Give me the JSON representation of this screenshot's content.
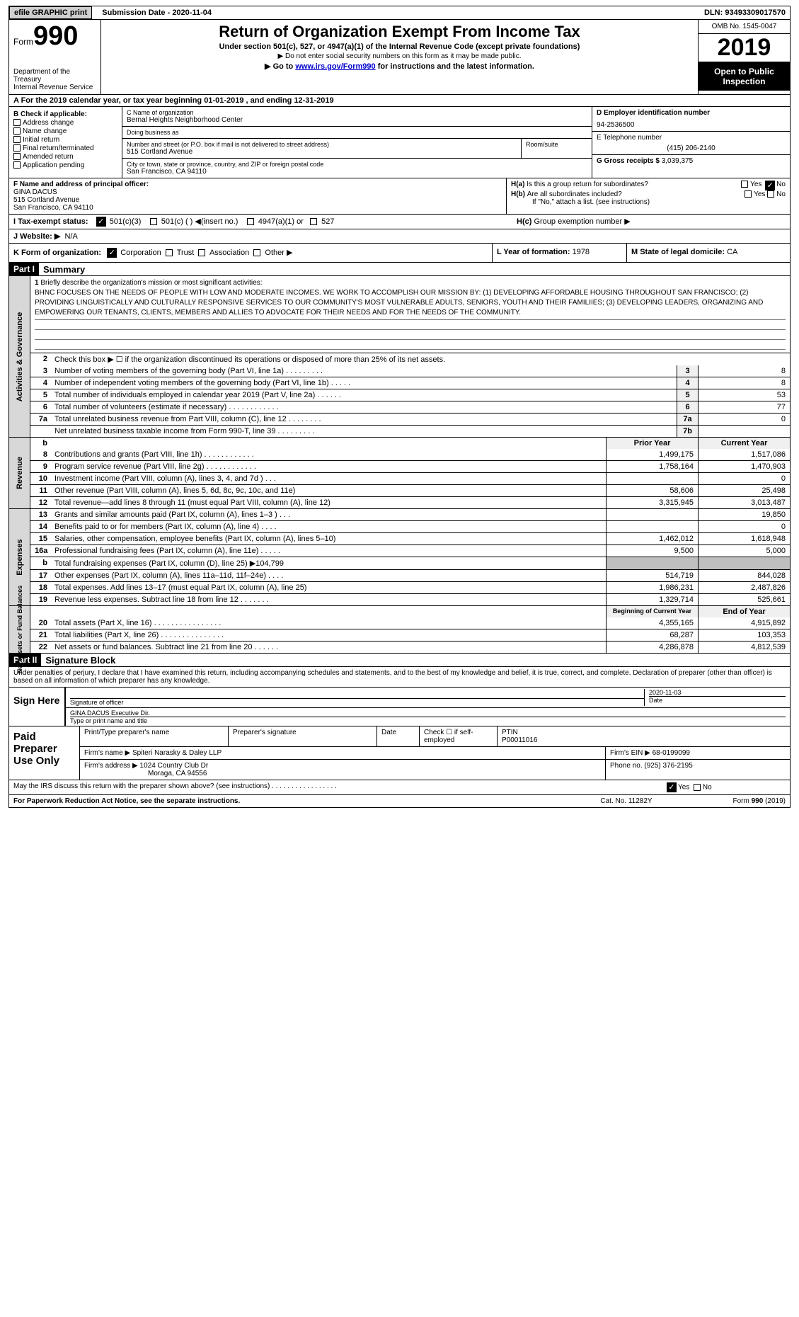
{
  "topbar": {
    "efile": "efile GRAPHIC print",
    "submission": "Submission Date - 2020-11-04",
    "dln": "DLN: 93493309017570"
  },
  "header": {
    "form_label": "Form",
    "form_num": "990",
    "dept": "Department of the Treasury\nInternal Revenue Service",
    "title": "Return of Organization Exempt From Income Tax",
    "sub1": "Under section 501(c), 527, or 4947(a)(1) of the Internal Revenue Code (except private foundations)",
    "sub2": "▶ Do not enter social security numbers on this form as it may be made public.",
    "sub3_pre": "▶ Go to ",
    "sub3_link": "www.irs.gov/Form990",
    "sub3_post": " for instructions and the latest information.",
    "omb": "OMB No. 1545-0047",
    "year": "2019",
    "open": "Open to Public Inspection"
  },
  "rowA": "A  For the 2019 calendar year, or tax year beginning 01-01-2019   , and ending 12-31-2019",
  "B": {
    "title": "B Check if applicable:",
    "items": [
      "Address change",
      "Name change",
      "Initial return",
      "Final return/terminated",
      "Amended return",
      "Application pending"
    ]
  },
  "C": {
    "name_lab": "C Name of organization",
    "name": "Bernal Heights Neighborhood Center",
    "dba_lab": "Doing business as",
    "dba": "",
    "addr_lab": "Number and street (or P.O. box if mail is not delivered to street address)",
    "addr": "515 Cortland Avenue",
    "room_lab": "Room/suite",
    "city_lab": "City or town, state or province, country, and ZIP or foreign postal code",
    "city": "San Francisco, CA  94110"
  },
  "D": {
    "lab": "D Employer identification number",
    "val": "94-2536500"
  },
  "E": {
    "lab": "E Telephone number",
    "val": "(415) 206-2140"
  },
  "G": {
    "lab": "G Gross receipts $",
    "val": "3,039,375"
  },
  "F": {
    "lab": "F Name and address of principal officer:",
    "name": "GINA DACUS",
    "addr1": "515 Cortland Avenue",
    "addr2": "San Francisco, CA  94110"
  },
  "H": {
    "a": "Is this a group return for subordinates?",
    "b": "Are all subordinates included?",
    "bnote": "If \"No,\" attach a list. (see instructions)",
    "c": "Group exemption number ▶",
    "yes": "Yes",
    "no": "No"
  },
  "I": {
    "lab": "I    Tax-exempt status:",
    "c3": "501(c)(3)",
    "c": "501(c) (  ) ◀(insert no.)",
    "a1": "4947(a)(1) or",
    "s527": "527"
  },
  "J": {
    "lab": "J   Website: ▶",
    "val": "N/A"
  },
  "K": {
    "lab": "K Form of organization:",
    "corp": "Corporation",
    "trust": "Trust",
    "assoc": "Association",
    "other": "Other ▶"
  },
  "L": {
    "lab": "L Year of formation:",
    "val": "1978"
  },
  "M": {
    "lab": "M State of legal domicile:",
    "val": "CA"
  },
  "partI": {
    "label": "Part I",
    "title": "Summary"
  },
  "mission": {
    "num": "1",
    "lab": "Briefly describe the organization's mission or most significant activities:",
    "text": "BHNC FOCUSES ON THE NEEDS OF PEOPLE WITH LOW AND MODERATE INCOMES. WE WORK TO ACCOMPLISH OUR MISSION BY: (1) DEVELOPING AFFORDABLE HOUSING THROUGHOUT SAN FRANCISCO; (2) PROVIDING LINGUISTICALLY AND CULTURALLY RESPONSIVE SERVICES TO OUR COMMUNITY'S MOST VULNERABLE ADULTS, SENIORS, YOUTH AND THEIR FAMILIIES; (3) DEVELOPING LEADERS, ORGANIZING AND EMPOWERING OUR TENANTS, CLIENTS, MEMBERS AND ALLIES TO ADVOCATE FOR THEIR NEEDS AND FOR THE NEEDS OF THE COMMUNITY."
  },
  "ag": {
    "label": "Activities & Governance",
    "l2": "Check this box ▶ ☐ if the organization discontinued its operations or disposed of more than 25% of its net assets.",
    "rows": [
      {
        "n": "3",
        "d": "Number of voting members of the governing body (Part VI, line 1a)   .    .    .    .    .    .    .    .    .",
        "b": "3",
        "v": "8"
      },
      {
        "n": "4",
        "d": "Number of independent voting members of the governing body (Part VI, line 1b)   .    .    .    .    .",
        "b": "4",
        "v": "8"
      },
      {
        "n": "5",
        "d": "Total number of individuals employed in calendar year 2019 (Part V, line 2a)   .    .    .    .    .    .",
        "b": "5",
        "v": "53"
      },
      {
        "n": "6",
        "d": "Total number of volunteers (estimate if necessary)   .    .    .    .    .    .    .    .    .    .    .    .",
        "b": "6",
        "v": "77"
      },
      {
        "n": "7a",
        "d": "Total unrelated business revenue from Part VIII, column (C), line 12   .    .    .    .    .    .    .    .",
        "b": "7a",
        "v": "0"
      },
      {
        "n": "",
        "d": "Net unrelated business taxable income from Form 990-T, line 39   .    .    .    .    .    .    .    .    .",
        "b": "7b",
        "v": ""
      }
    ]
  },
  "rev": {
    "label": "Revenue",
    "hdr": {
      "b": "b",
      "py": "Prior Year",
      "cy": "Current Year"
    },
    "rows": [
      {
        "n": "8",
        "d": "Contributions and grants (Part VIII, line 1h)   .    .    .    .    .    .    .    .    .    .    .    .",
        "py": "1,499,175",
        "cy": "1,517,086"
      },
      {
        "n": "9",
        "d": "Program service revenue (Part VIII, line 2g)   .    .    .    .    .    .    .    .    .    .    .    .",
        "py": "1,758,164",
        "cy": "1,470,903"
      },
      {
        "n": "10",
        "d": "Investment income (Part VIII, column (A), lines 3, 4, and 7d )   .    .    .",
        "py": "",
        "cy": "0"
      },
      {
        "n": "11",
        "d": "Other revenue (Part VIII, column (A), lines 5, 6d, 8c, 9c, 10c, and 11e)",
        "py": "58,606",
        "cy": "25,498"
      },
      {
        "n": "12",
        "d": "Total revenue—add lines 8 through 11 (must equal Part VIII, column (A), line 12)",
        "py": "3,315,945",
        "cy": "3,013,487"
      }
    ]
  },
  "exp": {
    "label": "Expenses",
    "rows": [
      {
        "n": "13",
        "d": "Grants and similar amounts paid (Part IX, column (A), lines 1–3 )   .    .    .",
        "py": "",
        "cy": "19,850"
      },
      {
        "n": "14",
        "d": "Benefits paid to or for members (Part IX, column (A), line 4)   .    .    .    .",
        "py": "",
        "cy": "0"
      },
      {
        "n": "15",
        "d": "Salaries, other compensation, employee benefits (Part IX, column (A), lines 5–10)",
        "py": "1,462,012",
        "cy": "1,618,948"
      },
      {
        "n": "16a",
        "d": "Professional fundraising fees (Part IX, column (A), line 11e)   .    .    .    .    .",
        "py": "9,500",
        "cy": "5,000"
      },
      {
        "n": "b",
        "d": "Total fundraising expenses (Part IX, column (D), line 25) ▶104,799",
        "py": "gray",
        "cy": "gray"
      },
      {
        "n": "17",
        "d": "Other expenses (Part IX, column (A), lines 11a–11d, 11f–24e)   .    .    .    .",
        "py": "514,719",
        "cy": "844,028"
      },
      {
        "n": "18",
        "d": "Total expenses. Add lines 13–17 (must equal Part IX, column (A), line 25)",
        "py": "1,986,231",
        "cy": "2,487,826"
      },
      {
        "n": "19",
        "d": "Revenue less expenses. Subtract line 18 from line 12   .    .    .    .    .    .    .",
        "py": "1,329,714",
        "cy": "525,661"
      }
    ]
  },
  "na": {
    "label": "Net Assets or Fund Balances",
    "hdr": {
      "py": "Beginning of Current Year",
      "cy": "End of Year"
    },
    "rows": [
      {
        "n": "20",
        "d": "Total assets (Part X, line 16)   .    .    .    .    .    .    .    .    .    .    .    .    .    .    .    .",
        "py": "4,355,165",
        "cy": "4,915,892"
      },
      {
        "n": "21",
        "d": "Total liabilities (Part X, line 26)   .    .    .    .    .    .    .    .    .    .    .    .    .    .    .",
        "py": "68,287",
        "cy": "103,353"
      },
      {
        "n": "22",
        "d": "Net assets or fund balances. Subtract line 21 from line 20   .    .    .    .    .    .",
        "py": "4,286,878",
        "cy": "4,812,539"
      }
    ]
  },
  "partII": {
    "label": "Part II",
    "title": "Signature Block"
  },
  "sigintro": "Under penalties of perjury, I declare that I have examined this return, including accompanying schedules and statements, and to the best of my knowledge and belief, it is true, correct, and complete. Declaration of preparer (other than officer) is based on all information of which preparer has any knowledge.",
  "sign": {
    "here": "Sign Here",
    "sig_of": "Signature of officer",
    "date": "2020-11-03",
    "date_lab": "Date",
    "name": "GINA DACUS Executive Dir.",
    "name_lab": "Type or print name and title"
  },
  "prep": {
    "title": "Paid Preparer Use Only",
    "r1": {
      "c1": "Print/Type preparer's name",
      "c2": "Preparer's signature",
      "c3": "Date",
      "c4": "Check ☐ if self-employed",
      "c5": "PTIN",
      "ptin": "P00011016"
    },
    "r2": {
      "lab": "Firm's name      ▶",
      "val": "Spiteri Narasky & Daley LLP",
      "ein_lab": "Firm's EIN ▶",
      "ein": "68-0199099"
    },
    "r3": {
      "lab": "Firm's address ▶",
      "val1": "1024 Country Club Dr",
      "val2": "Moraga, CA  94556",
      "ph_lab": "Phone no.",
      "ph": "(925) 376-2195"
    }
  },
  "discuss": {
    "q": "May the IRS discuss this return with the preparer shown above? (see instructions)   .    .    .    .    .    .    .    .    .    .    .    .    .    .    .    .    .",
    "yes": "Yes",
    "no": "No"
  },
  "footer": {
    "l": "For Paperwork Reduction Act Notice, see the separate instructions.",
    "c": "Cat. No. 11282Y",
    "r": "Form 990 (2019)"
  }
}
